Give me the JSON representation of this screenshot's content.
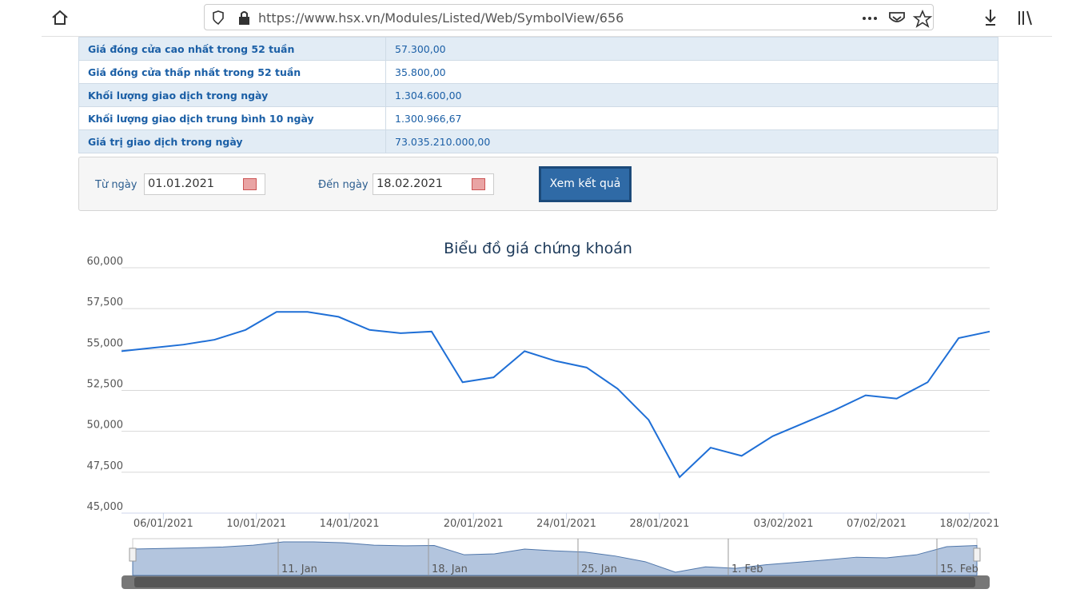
{
  "browser": {
    "url": "https://www.hsx.vn/Modules/Listed/Web/SymbolView/656"
  },
  "table": {
    "rows": [
      [
        "Giá đóng cửa cao nhất trong 52 tuần",
        "57.300,00"
      ],
      [
        "Giá đóng cửa thấp nhất trong 52 tuần",
        "35.800,00"
      ],
      [
        "Khối lượng giao dịch trong ngày",
        "1.304.600,00"
      ],
      [
        "Khối lượng giao dịch trung bình 10 ngày",
        "1.300.966,67"
      ],
      [
        "Giá trị giao dịch trong ngày",
        "73.035.210.000,00"
      ]
    ]
  },
  "form": {
    "from_label": "Từ ngày",
    "from_value": "01.01.2021",
    "to_label": "Đến ngày",
    "to_value": "18.02.2021",
    "button": "Xem kết quả"
  },
  "chart_data": {
    "type": "line",
    "title": "Biểu đồ giá chứng khoán",
    "color": "#1f6fd6",
    "categories": [
      null,
      "06/01/2021",
      null,
      null,
      "10/01/2021",
      null,
      null,
      "14/01/2021",
      null,
      null,
      null,
      "20/01/2021",
      null,
      null,
      "24/01/2021",
      null,
      null,
      "28/01/2021",
      null,
      null,
      null,
      "03/02/2021",
      null,
      null,
      "07/02/2021",
      null,
      null,
      "18/02/2021",
      null
    ],
    "values": [
      54900,
      55100,
      55300,
      55600,
      56200,
      57300,
      57300,
      57000,
      56200,
      56000,
      56100,
      53000,
      53300,
      54900,
      54300,
      53900,
      52600,
      50700,
      47200,
      49000,
      48500,
      49700,
      50500,
      51300,
      52200,
      52000,
      53000,
      55700,
      56100
    ],
    "ylim": [
      45000,
      60000
    ],
    "yticks": [
      {
        "value": 45000,
        "label": "45,000"
      },
      {
        "value": 47500,
        "label": "47,500"
      },
      {
        "value": 50000,
        "label": "50,000"
      },
      {
        "value": 52500,
        "label": "52,500"
      },
      {
        "value": 55000,
        "label": "55,000"
      },
      {
        "value": 57500,
        "label": "57,500"
      },
      {
        "value": 60000,
        "label": "60,000"
      }
    ],
    "grid": true,
    "navigator": {
      "labels": [
        "11. Jan",
        "18. Jan",
        "25. Jan",
        "1. Feb",
        "15. Feb"
      ]
    }
  }
}
